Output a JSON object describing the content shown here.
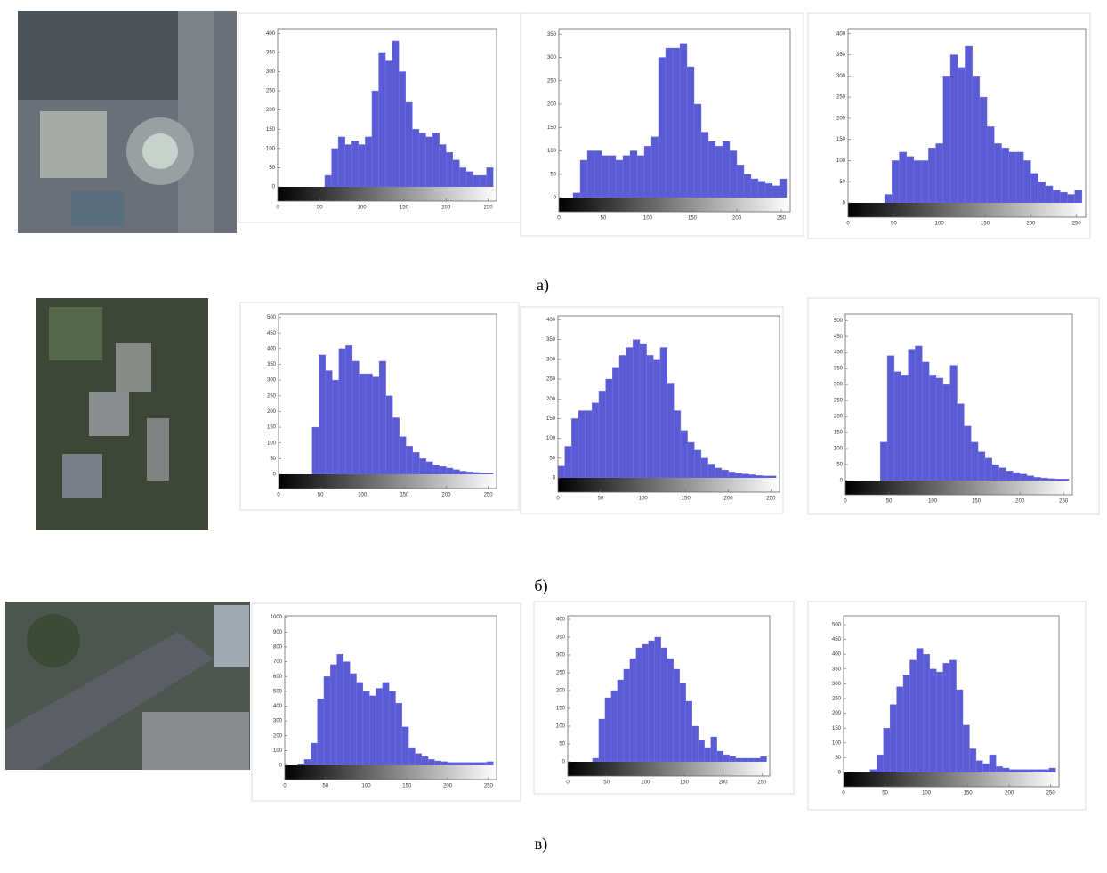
{
  "captions": [
    "а)",
    "б)",
    "в)"
  ],
  "chart_data": [
    {
      "type": "histogram",
      "color": "#5b5bd6",
      "bins": [
        0,
        8,
        16,
        24,
        32,
        40,
        48,
        56,
        64,
        72,
        80,
        88,
        96,
        104,
        112,
        120,
        128,
        136,
        144,
        152,
        160,
        168,
        176,
        184,
        192,
        200,
        208,
        216,
        224,
        232,
        240,
        248,
        256
      ],
      "values": [
        0,
        0,
        0,
        0,
        0,
        0,
        0,
        30,
        100,
        130,
        110,
        120,
        110,
        130,
        250,
        350,
        330,
        380,
        300,
        220,
        150,
        140,
        130,
        140,
        110,
        90,
        70,
        50,
        40,
        30,
        30,
        50
      ],
      "xlim": [
        0,
        260
      ],
      "ylim": [
        0,
        410
      ],
      "xticks": [
        0,
        50,
        100,
        150,
        200,
        250
      ],
      "yticks": [
        0,
        50,
        100,
        150,
        200,
        250,
        300,
        350,
        400
      ]
    },
    {
      "type": "histogram",
      "color": "#5b5bd6",
      "bins": [
        0,
        8,
        16,
        24,
        32,
        40,
        48,
        56,
        64,
        72,
        80,
        88,
        96,
        104,
        112,
        120,
        128,
        136,
        144,
        152,
        160,
        168,
        176,
        184,
        192,
        200,
        208,
        216,
        224,
        232,
        240,
        248,
        256
      ],
      "values": [
        0,
        0,
        10,
        80,
        100,
        100,
        90,
        90,
        80,
        90,
        100,
        90,
        110,
        130,
        300,
        320,
        320,
        330,
        280,
        200,
        140,
        120,
        110,
        120,
        100,
        70,
        50,
        40,
        35,
        30,
        25,
        40
      ],
      "xlim": [
        0,
        260
      ],
      "ylim": [
        0,
        360
      ],
      "xticks": [
        0,
        50,
        100,
        150,
        200,
        250
      ],
      "yticks": [
        0,
        50,
        100,
        150,
        200,
        250,
        300,
        350
      ]
    },
    {
      "type": "histogram",
      "color": "#5b5bd6",
      "bins": [
        0,
        8,
        16,
        24,
        32,
        40,
        48,
        56,
        64,
        72,
        80,
        88,
        96,
        104,
        112,
        120,
        128,
        136,
        144,
        152,
        160,
        168,
        176,
        184,
        192,
        200,
        208,
        216,
        224,
        232,
        240,
        248,
        256
      ],
      "values": [
        0,
        0,
        0,
        0,
        0,
        20,
        100,
        120,
        110,
        100,
        100,
        130,
        140,
        300,
        350,
        320,
        370,
        300,
        250,
        180,
        140,
        130,
        120,
        120,
        100,
        70,
        50,
        40,
        30,
        25,
        20,
        30
      ],
      "xlim": [
        0,
        260
      ],
      "ylim": [
        0,
        410
      ],
      "xticks": [
        0,
        50,
        100,
        150,
        200,
        250
      ],
      "yticks": [
        0,
        50,
        100,
        150,
        200,
        250,
        300,
        350,
        400
      ]
    },
    {
      "type": "histogram",
      "color": "#5b5bd6",
      "bins": [
        0,
        8,
        16,
        24,
        32,
        40,
        48,
        56,
        64,
        72,
        80,
        88,
        96,
        104,
        112,
        120,
        128,
        136,
        144,
        152,
        160,
        168,
        176,
        184,
        192,
        200,
        208,
        216,
        224,
        232,
        240,
        248,
        256
      ],
      "values": [
        0,
        0,
        0,
        0,
        0,
        150,
        380,
        330,
        300,
        400,
        410,
        360,
        320,
        320,
        310,
        360,
        250,
        180,
        120,
        90,
        70,
        50,
        40,
        30,
        25,
        20,
        15,
        10,
        8,
        6,
        5,
        5
      ],
      "xlim": [
        0,
        260
      ],
      "ylim": [
        0,
        510
      ],
      "xticks": [
        0,
        50,
        100,
        150,
        200,
        250
      ],
      "yticks": [
        0,
        50,
        100,
        150,
        200,
        250,
        300,
        350,
        400,
        450,
        500
      ]
    },
    {
      "type": "histogram",
      "color": "#5b5bd6",
      "bins": [
        0,
        8,
        16,
        24,
        32,
        40,
        48,
        56,
        64,
        72,
        80,
        88,
        96,
        104,
        112,
        120,
        128,
        136,
        144,
        152,
        160,
        168,
        176,
        184,
        192,
        200,
        208,
        216,
        224,
        232,
        240,
        248,
        256
      ],
      "values": [
        30,
        80,
        150,
        170,
        170,
        190,
        220,
        250,
        280,
        310,
        330,
        350,
        340,
        310,
        300,
        330,
        240,
        170,
        120,
        90,
        70,
        50,
        35,
        25,
        20,
        15,
        12,
        10,
        8,
        6,
        5,
        5
      ],
      "xlim": [
        0,
        260
      ],
      "ylim": [
        0,
        410
      ],
      "xticks": [
        0,
        50,
        100,
        150,
        200,
        250
      ],
      "yticks": [
        0,
        50,
        100,
        150,
        200,
        250,
        300,
        350,
        400
      ]
    },
    {
      "type": "histogram",
      "color": "#5b5bd6",
      "bins": [
        0,
        8,
        16,
        24,
        32,
        40,
        48,
        56,
        64,
        72,
        80,
        88,
        96,
        104,
        112,
        120,
        128,
        136,
        144,
        152,
        160,
        168,
        176,
        184,
        192,
        200,
        208,
        216,
        224,
        232,
        240,
        248,
        256
      ],
      "values": [
        0,
        0,
        0,
        0,
        0,
        120,
        390,
        340,
        330,
        410,
        420,
        370,
        330,
        320,
        300,
        360,
        240,
        170,
        120,
        90,
        70,
        50,
        40,
        30,
        25,
        20,
        15,
        10,
        8,
        6,
        5,
        5
      ],
      "xlim": [
        0,
        260
      ],
      "ylim": [
        0,
        520
      ],
      "xticks": [
        0,
        50,
        100,
        150,
        200,
        250
      ],
      "yticks": [
        0,
        50,
        100,
        150,
        200,
        250,
        300,
        350,
        400,
        450,
        500
      ]
    },
    {
      "type": "histogram",
      "color": "#5b5bd6",
      "bins": [
        0,
        8,
        16,
        24,
        32,
        40,
        48,
        56,
        64,
        72,
        80,
        88,
        96,
        104,
        112,
        120,
        128,
        136,
        144,
        152,
        160,
        168,
        176,
        184,
        192,
        200,
        208,
        216,
        224,
        232,
        240,
        248,
        256
      ],
      "values": [
        0,
        0,
        10,
        40,
        150,
        450,
        600,
        680,
        750,
        700,
        620,
        560,
        500,
        470,
        520,
        560,
        500,
        420,
        260,
        120,
        80,
        60,
        40,
        30,
        25,
        20,
        20,
        20,
        20,
        20,
        20,
        25
      ],
      "xlim": [
        0,
        260
      ],
      "ylim": [
        0,
        1010
      ],
      "xticks": [
        0,
        50,
        100,
        150,
        200,
        250
      ],
      "yticks": [
        0,
        100,
        200,
        300,
        400,
        500,
        600,
        700,
        800,
        900,
        1000
      ]
    },
    {
      "type": "histogram",
      "color": "#5b5bd6",
      "bins": [
        0,
        8,
        16,
        24,
        32,
        40,
        48,
        56,
        64,
        72,
        80,
        88,
        96,
        104,
        112,
        120,
        128,
        136,
        144,
        152,
        160,
        168,
        176,
        184,
        192,
        200,
        208,
        216,
        224,
        232,
        240,
        248,
        256
      ],
      "values": [
        0,
        0,
        0,
        0,
        10,
        120,
        180,
        200,
        230,
        260,
        290,
        320,
        330,
        340,
        350,
        320,
        290,
        260,
        220,
        170,
        100,
        60,
        40,
        70,
        30,
        20,
        15,
        10,
        10,
        10,
        10,
        15
      ],
      "xlim": [
        0,
        260
      ],
      "ylim": [
        0,
        410
      ],
      "xticks": [
        0,
        50,
        100,
        150,
        200,
        250
      ],
      "yticks": [
        0,
        50,
        100,
        150,
        200,
        250,
        300,
        350,
        400
      ]
    },
    {
      "type": "histogram",
      "color": "#5b5bd6",
      "bins": [
        0,
        8,
        16,
        24,
        32,
        40,
        48,
        56,
        64,
        72,
        80,
        88,
        96,
        104,
        112,
        120,
        128,
        136,
        144,
        152,
        160,
        168,
        176,
        184,
        192,
        200,
        208,
        216,
        224,
        232,
        240,
        248,
        256
      ],
      "values": [
        0,
        0,
        0,
        0,
        10,
        60,
        150,
        230,
        290,
        330,
        380,
        420,
        400,
        350,
        340,
        370,
        380,
        280,
        160,
        80,
        40,
        30,
        60,
        20,
        15,
        10,
        10,
        10,
        10,
        10,
        10,
        15
      ],
      "xlim": [
        0,
        260
      ],
      "ylim": [
        0,
        530
      ],
      "xticks": [
        0,
        50,
        100,
        150,
        200,
        250
      ],
      "yticks": [
        0,
        50,
        100,
        150,
        200,
        250,
        300,
        350,
        400,
        450,
        500
      ]
    }
  ]
}
